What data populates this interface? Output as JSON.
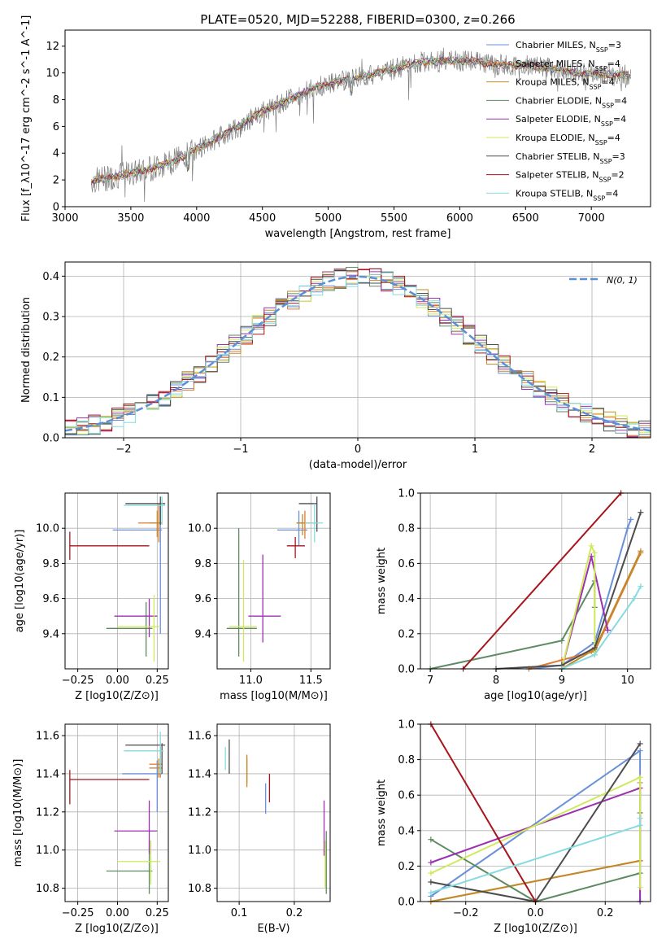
{
  "title": "PLATE=0520, MJD=52288, FIBERID=0300, z=0.266",
  "colors": {
    "Chabrier MILES": "#6a8fd9",
    "Salpeter MILES": "#e07b2e",
    "Kroupa MILES": "#c08a2a",
    "Chabrier ELODIE": "#5e8a62",
    "Salpeter ELODIE": "#9b30b0",
    "Kroupa ELODIE": "#cfe95a",
    "Chabrier STELIB": "#4d4d4d",
    "Salpeter STELIB": "#a8141c",
    "Kroupa STELIB": "#85dbe0",
    "spectrum": "#808080",
    "normal": "#5b8fd6"
  },
  "chart_data": [
    {
      "id": "spectrum",
      "type": "line",
      "xlabel": "wavelength [Angstrom, rest frame]",
      "ylabel": "Flux [f_λ10^-17 erg cm^-2 s^-1 A^-1]",
      "xlim": [
        3000,
        7450
      ],
      "ylim": [
        0,
        13.2
      ],
      "xticks": [
        "3000",
        "3500",
        "4000",
        "4500",
        "5000",
        "5500",
        "6000",
        "6500",
        "7000"
      ],
      "yticks": [
        "0",
        "2",
        "4",
        "6",
        "8",
        "10",
        "12"
      ],
      "grid": false,
      "legend": "top-right",
      "legend_entries": [
        {
          "pre": "Chabrier MILES, N",
          "sub": "SSP",
          "post": "=3",
          "series": "Chabrier MILES"
        },
        {
          "pre": "Salpeter MILES, N",
          "sub": "SSP",
          "post": "=4",
          "series": "Salpeter MILES"
        },
        {
          "pre": "Kroupa MILES, N",
          "sub": "SSP",
          "post": "=4",
          "series": "Kroupa MILES"
        },
        {
          "pre": "Chabrier ELODIE, N",
          "sub": "SSP",
          "post": "=4",
          "series": "Chabrier ELODIE"
        },
        {
          "pre": "Salpeter ELODIE, N",
          "sub": "SSP",
          "post": "=4",
          "series": "Salpeter ELODIE"
        },
        {
          "pre": "Kroupa ELODIE, N",
          "sub": "SSP",
          "post": "=4",
          "series": "Kroupa ELODIE"
        },
        {
          "pre": "Chabrier STELIB, N",
          "sub": "SSP",
          "post": "=3",
          "series": "Chabrier STELIB"
        },
        {
          "pre": "Salpeter STELIB, N",
          "sub": "SSP",
          "post": "=2",
          "series": "Salpeter STELIB"
        },
        {
          "pre": "Kroupa STELIB, N",
          "sub": "SSP",
          "post": "=4",
          "series": "Kroupa STELIB"
        }
      ],
      "continuum": {
        "x": [
          3200,
          3400,
          3600,
          3800,
          3950,
          4100,
          4300,
          4500,
          4700,
          4900,
          5100,
          5300,
          5500,
          5700,
          5900,
          6100,
          6300,
          6500,
          6700,
          6900,
          7100,
          7300
        ],
        "y": [
          1.9,
          2.3,
          2.7,
          3.3,
          4.0,
          4.8,
          5.9,
          7.1,
          8.0,
          8.9,
          9.4,
          9.8,
          10.3,
          10.8,
          10.9,
          10.9,
          10.6,
          10.6,
          10.3,
          10.0,
          9.9,
          9.8
        ]
      }
    },
    {
      "id": "residuals",
      "type": "histogram",
      "xlabel": "(data-model)/error",
      "ylabel": "Normed distribution",
      "xlim": [
        -2.5,
        2.5
      ],
      "ylim": [
        0,
        0.435
      ],
      "xticks": [
        -2,
        -1,
        0,
        1,
        2
      ],
      "xtick_labels": [
        "−2",
        "−1",
        "0",
        "1",
        "2"
      ],
      "yticks": [
        0,
        0.1,
        0.2,
        0.3,
        0.4
      ],
      "ytick_labels": [
        "0.0",
        "0.1",
        "0.2",
        "0.3",
        "0.4"
      ],
      "grid": true,
      "legend": "top-right",
      "legend_label": "N(0, 1)",
      "bin_width": 0.1
    },
    {
      "id": "age_vs_Z",
      "type": "errorbar",
      "xlabel": "Z [log10(Z/Z⊙)]",
      "ylabel": "age [log10(age/yr)]",
      "xlim": [
        -0.33,
        0.32
      ],
      "ylim": [
        9.2,
        10.2
      ],
      "xticks": [
        -0.25,
        0,
        0.25
      ],
      "xtick_labels": [
        "−0.25",
        "0.00",
        "0.25"
      ],
      "yticks": [
        9.4,
        9.6,
        9.8,
        10.0
      ],
      "ytick_labels": [
        "9.4",
        "9.6",
        "9.8",
        "10.0"
      ],
      "grid": true,
      "points": [
        {
          "s": "Chabrier MILES",
          "x": 0.27,
          "y": 9.99,
          "xl": -0.03,
          "xh": 0.28,
          "yl": 9.4,
          "yh": 10.14
        },
        {
          "s": "Salpeter MILES",
          "x": 0.26,
          "y": 10.03,
          "xl": 0.13,
          "xh": 0.28,
          "yl": 9.92,
          "yh": 10.14
        },
        {
          "s": "Kroupa MILES",
          "x": 0.25,
          "y": 10.03,
          "xl": 0.2,
          "xh": 0.27,
          "yl": 9.95,
          "yh": 10.1
        },
        {
          "s": "Chabrier ELODIE",
          "x": 0.18,
          "y": 9.43,
          "xl": -0.07,
          "xh": 0.22,
          "yl": 9.27,
          "yh": 9.58
        },
        {
          "s": "Salpeter ELODIE",
          "x": 0.2,
          "y": 9.5,
          "xl": -0.02,
          "xh": 0.25,
          "yl": 9.38,
          "yh": 9.6
        },
        {
          "s": "Kroupa ELODIE",
          "x": 0.23,
          "y": 9.44,
          "xl": 0.0,
          "xh": 0.27,
          "yl": 9.24,
          "yh": 9.62
        },
        {
          "s": "Chabrier STELIB",
          "x": 0.27,
          "y": 10.14,
          "xl": 0.05,
          "xh": 0.3,
          "yl": 10.02,
          "yh": 10.18
        },
        {
          "s": "Salpeter STELIB",
          "x": -0.3,
          "y": 9.9,
          "xl": -0.3,
          "xh": 0.2,
          "yl": 9.82,
          "yh": 9.98
        },
        {
          "s": "Kroupa STELIB",
          "x": 0.28,
          "y": 10.13,
          "xl": 0.04,
          "xh": 0.3,
          "yl": 10.02,
          "yh": 10.18
        }
      ]
    },
    {
      "id": "age_vs_mass",
      "type": "errorbar",
      "xlabel": "mass [log10(M/M⊙)]",
      "ylabel": "",
      "xlim": [
        10.72,
        11.66
      ],
      "ylim": [
        9.2,
        10.2
      ],
      "xticks": [
        11.0,
        11.5
      ],
      "xtick_labels": [
        "11.0",
        "11.5"
      ],
      "yticks": [
        9.4,
        9.6,
        9.8,
        10.0
      ],
      "ytick_labels": [
        "9.4",
        "9.6",
        "9.8",
        "10.0"
      ],
      "grid": true,
      "points": [
        {
          "s": "Chabrier MILES",
          "x": 11.4,
          "y": 9.99,
          "xl": 11.22,
          "xh": 11.47,
          "yl": 9.9,
          "yh": 10.1
        },
        {
          "s": "Salpeter MILES",
          "x": 11.45,
          "y": 10.03,
          "xl": 11.38,
          "xh": 11.55,
          "yl": 9.94,
          "yh": 10.1
        },
        {
          "s": "Kroupa MILES",
          "x": 11.43,
          "y": 10.03,
          "xl": 11.38,
          "xh": 11.48,
          "yl": 9.96,
          "yh": 10.08
        },
        {
          "s": "Chabrier ELODIE",
          "x": 10.9,
          "y": 9.43,
          "xl": 10.8,
          "xh": 11.05,
          "yl": 9.27,
          "yh": 10.0
        },
        {
          "s": "Salpeter ELODIE",
          "x": 11.1,
          "y": 9.5,
          "xl": 10.98,
          "xh": 11.25,
          "yl": 9.35,
          "yh": 9.85
        },
        {
          "s": "Kroupa ELODIE",
          "x": 10.94,
          "y": 9.44,
          "xl": 10.82,
          "xh": 11.05,
          "yl": 9.24,
          "yh": 9.82
        },
        {
          "s": "Chabrier STELIB",
          "x": 11.55,
          "y": 10.14,
          "xl": 11.4,
          "xh": 11.55,
          "yl": 9.98,
          "yh": 10.18
        },
        {
          "s": "Salpeter STELIB",
          "x": 11.37,
          "y": 9.9,
          "xl": 11.3,
          "xh": 11.45,
          "yl": 9.83,
          "yh": 9.95
        },
        {
          "s": "Kroupa STELIB",
          "x": 11.53,
          "y": 10.03,
          "xl": 11.45,
          "xh": 11.6,
          "yl": 9.92,
          "yh": 10.14
        }
      ]
    },
    {
      "id": "weight_vs_age",
      "type": "line",
      "xlabel": "age [log10(age/yr)]",
      "ylabel": "mass weight",
      "xlim": [
        6.85,
        10.35
      ],
      "ylim": [
        0,
        1.0
      ],
      "xticks": [
        7,
        8,
        9,
        10
      ],
      "xtick_labels": [
        "7",
        "8",
        "9",
        "10"
      ],
      "yticks": [
        0,
        0.2,
        0.4,
        0.6,
        0.8,
        1.0
      ],
      "ytick_labels": [
        "0.0",
        "0.2",
        "0.4",
        "0.6",
        "0.8",
        "1.0"
      ],
      "grid": true,
      "series": [
        {
          "name": "Chabrier MILES",
          "x": [
            8.5,
            9.0,
            9.5,
            10.0,
            10.05
          ],
          "y": [
            0.0,
            0.02,
            0.15,
            0.8,
            0.85
          ]
        },
        {
          "name": "Salpeter MILES",
          "x": [
            8.5,
            9.0,
            9.5,
            10.2
          ],
          "y": [
            0.0,
            0.05,
            0.1,
            0.66
          ]
        },
        {
          "name": "Kroupa MILES",
          "x": [
            9.0,
            9.45,
            9.5,
            10.2
          ],
          "y": [
            0.0,
            0.1,
            0.11,
            0.67
          ]
        },
        {
          "name": "Chabrier ELODIE",
          "x": [
            7.0,
            9.0,
            9.5,
            9.5
          ],
          "y": [
            0.0,
            0.16,
            0.5,
            0.35
          ]
        },
        {
          "name": "Salpeter ELODIE",
          "x": [
            9.0,
            9.45,
            9.7,
            9.7
          ],
          "y": [
            0.0,
            0.64,
            0.22,
            0.22
          ]
        },
        {
          "name": "Kroupa ELODIE",
          "x": [
            9.0,
            9.45,
            9.5,
            9.5
          ],
          "y": [
            0.0,
            0.7,
            0.66,
            0.08
          ]
        },
        {
          "name": "Chabrier STELIB",
          "x": [
            8.0,
            9.0,
            9.5,
            10.2
          ],
          "y": [
            0.0,
            0.02,
            0.12,
            0.89
          ]
        },
        {
          "name": "Salpeter STELIB",
          "x": [
            7.5,
            9.9
          ],
          "y": [
            0.0,
            1.0
          ]
        },
        {
          "name": "Kroupa STELIB",
          "x": [
            9.0,
            9.5,
            10.1,
            10.2
          ],
          "y": [
            0.0,
            0.08,
            0.4,
            0.47
          ]
        }
      ]
    },
    {
      "id": "mass_vs_Z",
      "type": "errorbar",
      "xlabel": "Z [log10(Z/Z⊙)]",
      "ylabel": "mass [log10(M/M⊙)]",
      "xlim": [
        -0.33,
        0.32
      ],
      "ylim": [
        10.73,
        11.66
      ],
      "xticks": [
        -0.25,
        0,
        0.25
      ],
      "xtick_labels": [
        "−0.25",
        "0.00",
        "0.25"
      ],
      "yticks": [
        10.8,
        11.0,
        11.2,
        11.4,
        11.6
      ],
      "ytick_labels": [
        "10.8",
        "11.0",
        "11.2",
        "11.4",
        "11.6"
      ],
      "grid": true,
      "points": [
        {
          "s": "Chabrier MILES",
          "x": 0.25,
          "y": 11.4,
          "xl": 0.03,
          "xh": 0.28,
          "yl": 11.2,
          "yh": 11.47
        },
        {
          "s": "Salpeter MILES",
          "x": 0.27,
          "y": 11.45,
          "xl": 0.2,
          "xh": 0.28,
          "yl": 11.38,
          "yh": 11.55
        },
        {
          "s": "Kroupa MILES",
          "x": 0.26,
          "y": 11.43,
          "xl": 0.2,
          "xh": 0.28,
          "yl": 11.38,
          "yh": 11.48
        },
        {
          "s": "Chabrier ELODIE",
          "x": 0.2,
          "y": 10.89,
          "xl": -0.07,
          "xh": 0.22,
          "yl": 10.77,
          "yh": 11.05
        },
        {
          "s": "Salpeter ELODIE",
          "x": 0.2,
          "y": 11.1,
          "xl": -0.02,
          "xh": 0.25,
          "yl": 10.98,
          "yh": 11.26
        },
        {
          "s": "Kroupa ELODIE",
          "x": 0.21,
          "y": 10.94,
          "xl": 0.0,
          "xh": 0.27,
          "yl": 10.82,
          "yh": 11.05
        },
        {
          "s": "Chabrier STELIB",
          "x": 0.28,
          "y": 11.55,
          "xl": 0.05,
          "xh": 0.3,
          "yl": 11.4,
          "yh": 11.56
        },
        {
          "s": "Salpeter STELIB",
          "x": -0.3,
          "y": 11.37,
          "xl": -0.3,
          "xh": 0.2,
          "yl": 11.24,
          "yh": 11.42
        },
        {
          "s": "Kroupa STELIB",
          "x": 0.27,
          "y": 11.52,
          "xl": 0.04,
          "xh": 0.29,
          "yl": 11.4,
          "yh": 11.62
        }
      ]
    },
    {
      "id": "mass_vs_EBV",
      "type": "errorbar",
      "xlabel": "E(B-V)",
      "ylabel": "",
      "xlim": [
        0.06,
        0.265
      ],
      "ylim": [
        10.73,
        11.66
      ],
      "xticks": [
        0.1,
        0.2
      ],
      "xtick_labels": [
        "0.1",
        "0.2"
      ],
      "yticks": [
        10.8,
        11.0,
        11.2,
        11.4,
        11.6
      ],
      "ytick_labels": [
        "10.8",
        "11.0",
        "11.2",
        "11.4",
        "11.6"
      ],
      "grid": true,
      "points": [
        {
          "s": "Chabrier MILES",
          "x": 0.148,
          "y": 11.27,
          "xl": 0.148,
          "xh": 0.148,
          "yl": 11.19,
          "yh": 11.35
        },
        {
          "s": "Salpeter MILES",
          "x": 0.114,
          "y": 11.42,
          "xl": 0.114,
          "xh": 0.114,
          "yl": 11.33,
          "yh": 11.5
        },
        {
          "s": "Kroupa MILES",
          "x": 0.114,
          "y": 11.42,
          "xl": 0.114,
          "xh": 0.114,
          "yl": 11.35,
          "yh": 11.48
        },
        {
          "s": "Chabrier ELODIE",
          "x": 0.258,
          "y": 10.95,
          "xl": 0.258,
          "xh": 0.258,
          "yl": 10.77,
          "yh": 11.1
        },
        {
          "s": "Salpeter ELODIE",
          "x": 0.254,
          "y": 11.05,
          "xl": 0.254,
          "xh": 0.254,
          "yl": 10.97,
          "yh": 11.26
        },
        {
          "s": "Kroupa ELODIE",
          "x": 0.256,
          "y": 10.94,
          "xl": 0.256,
          "xh": 0.256,
          "yl": 10.8,
          "yh": 11.05
        },
        {
          "s": "Chabrier STELIB",
          "x": 0.082,
          "y": 11.5,
          "xl": 0.082,
          "xh": 0.082,
          "yl": 11.4,
          "yh": 11.58
        },
        {
          "s": "Salpeter STELIB",
          "x": 0.155,
          "y": 11.32,
          "xl": 0.155,
          "xh": 0.155,
          "yl": 11.25,
          "yh": 11.4
        },
        {
          "s": "Kroupa STELIB",
          "x": 0.075,
          "y": 11.48,
          "xl": 0.075,
          "xh": 0.075,
          "yl": 11.42,
          "yh": 11.54
        }
      ]
    },
    {
      "id": "weight_vs_Z",
      "type": "line",
      "xlabel": "Z [log10(Z/Z⊙)]",
      "ylabel": "mass weight",
      "xlim": [
        -0.33,
        0.33
      ],
      "ylim": [
        0,
        1.0
      ],
      "xticks": [
        -0.2,
        0,
        0.2
      ],
      "xtick_labels": [
        "−0.2",
        "0.0",
        "0.2"
      ],
      "yticks": [
        0,
        0.2,
        0.4,
        0.6,
        0.8,
        1.0
      ],
      "ytick_labels": [
        "0.0",
        "0.2",
        "0.4",
        "0.6",
        "0.8",
        "1.0"
      ],
      "grid": true,
      "series": [
        {
          "name": "Chabrier MILES",
          "x": [
            -0.3,
            0.3,
            0.3
          ],
          "y": [
            0.03,
            0.85,
            0.0
          ]
        },
        {
          "name": "Salpeter MILES",
          "x": [
            -0.3,
            0.3
          ],
          "y": [
            0.0,
            0.23
          ]
        },
        {
          "name": "Kroupa MILES",
          "x": [
            -0.3,
            0.3,
            0.3
          ],
          "y": [
            0.0,
            0.23,
            0.67
          ]
        },
        {
          "name": "Chabrier ELODIE",
          "x": [
            -0.3,
            0.0,
            0.3,
            0.3
          ],
          "y": [
            0.35,
            0.0,
            0.16,
            0.5
          ]
        },
        {
          "name": "Salpeter ELODIE",
          "x": [
            -0.3,
            0.3,
            0.3
          ],
          "y": [
            0.22,
            0.64,
            0.0
          ]
        },
        {
          "name": "Kroupa ELODIE",
          "x": [
            -0.3,
            0.3,
            0.3
          ],
          "y": [
            0.16,
            0.7,
            0.08
          ]
        },
        {
          "name": "Chabrier STELIB",
          "x": [
            -0.3,
            0.0,
            0.3
          ],
          "y": [
            0.11,
            0.0,
            0.89
          ]
        },
        {
          "name": "Salpeter STELIB",
          "x": [
            -0.3,
            0.0
          ],
          "y": [
            1.0,
            0.0
          ]
        },
        {
          "name": "Kroupa STELIB",
          "x": [
            -0.3,
            0.3,
            0.3
          ],
          "y": [
            0.05,
            0.43,
            0.47
          ]
        }
      ]
    }
  ]
}
